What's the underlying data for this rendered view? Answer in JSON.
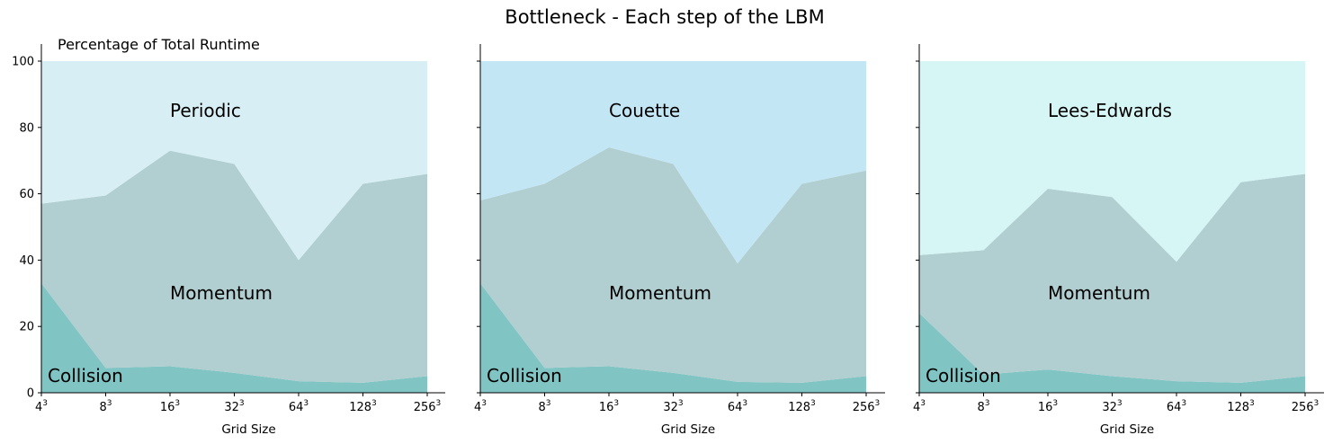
{
  "figure": {
    "title": "Bottleneck - Each step of the LBM",
    "ylabel": "Percentage of Total Runtime"
  },
  "colors": {
    "collision": "#80c4c3",
    "momentum": "#b1ced0",
    "periodic": "#d7eff4",
    "couette": "#c3e6f5",
    "lees_edwards": "#d6f5f5"
  },
  "chart_data": [
    {
      "type": "area",
      "stacked": true,
      "xlabel": "Grid Size",
      "x_ticks": [
        {
          "base": "4",
          "exp": "3"
        },
        {
          "base": "8",
          "exp": "3"
        },
        {
          "base": "16",
          "exp": "3"
        },
        {
          "base": "32",
          "exp": "3"
        },
        {
          "base": "64",
          "exp": "3"
        },
        {
          "base": "128",
          "exp": "3"
        },
        {
          "base": "256",
          "exp": "3"
        }
      ],
      "ylim": [
        0,
        100
      ],
      "y_ticks": [
        "0",
        "20",
        "40",
        "60",
        "80",
        "100"
      ],
      "grid": false,
      "legend": "none",
      "series": [
        {
          "name": "Collision",
          "color_key": "collision",
          "cumulative": [
            33,
            7.5,
            8,
            6,
            3.5,
            3,
            5
          ]
        },
        {
          "name": "Momentum",
          "color_key": "momentum",
          "cumulative": [
            57,
            59.5,
            73,
            69,
            40,
            63,
            66
          ]
        },
        {
          "name": "Periodic",
          "color_key": "periodic",
          "cumulative": [
            100,
            100,
            100,
            100,
            100,
            100,
            100
          ]
        }
      ]
    },
    {
      "type": "area",
      "stacked": true,
      "xlabel": "Grid Size",
      "x_ticks": [
        {
          "base": "4",
          "exp": "3"
        },
        {
          "base": "8",
          "exp": "3"
        },
        {
          "base": "16",
          "exp": "3"
        },
        {
          "base": "32",
          "exp": "3"
        },
        {
          "base": "64",
          "exp": "3"
        },
        {
          "base": "128",
          "exp": "3"
        },
        {
          "base": "256",
          "exp": "3"
        }
      ],
      "ylim": [
        0,
        100
      ],
      "grid": false,
      "legend": "none",
      "series": [
        {
          "name": "Collision",
          "color_key": "collision",
          "cumulative": [
            33,
            7.5,
            8,
            6,
            3.3,
            3,
            5
          ]
        },
        {
          "name": "Momentum",
          "color_key": "momentum",
          "cumulative": [
            58,
            63,
            74,
            69,
            39,
            63,
            67
          ]
        },
        {
          "name": "Couette",
          "color_key": "couette",
          "cumulative": [
            100,
            100,
            100,
            100,
            100,
            100,
            100
          ]
        }
      ]
    },
    {
      "type": "area",
      "stacked": true,
      "xlabel": "Grid Size",
      "x_ticks": [
        {
          "base": "4",
          "exp": "3"
        },
        {
          "base": "8",
          "exp": "3"
        },
        {
          "base": "16",
          "exp": "3"
        },
        {
          "base": "32",
          "exp": "3"
        },
        {
          "base": "64",
          "exp": "3"
        },
        {
          "base": "128",
          "exp": "3"
        },
        {
          "base": "256",
          "exp": "3"
        }
      ],
      "ylim": [
        0,
        100
      ],
      "grid": false,
      "legend": "none",
      "series": [
        {
          "name": "Collision",
          "color_key": "collision",
          "cumulative": [
            24,
            5.5,
            7,
            5,
            3.5,
            3,
            5
          ]
        },
        {
          "name": "Momentum",
          "color_key": "momentum",
          "cumulative": [
            41.5,
            43,
            61.5,
            59,
            39.5,
            63.5,
            66
          ]
        },
        {
          "name": "Lees-Edwards",
          "color_key": "lees_edwards",
          "cumulative": [
            100,
            100,
            100,
            100,
            100,
            100,
            100
          ]
        }
      ]
    }
  ]
}
